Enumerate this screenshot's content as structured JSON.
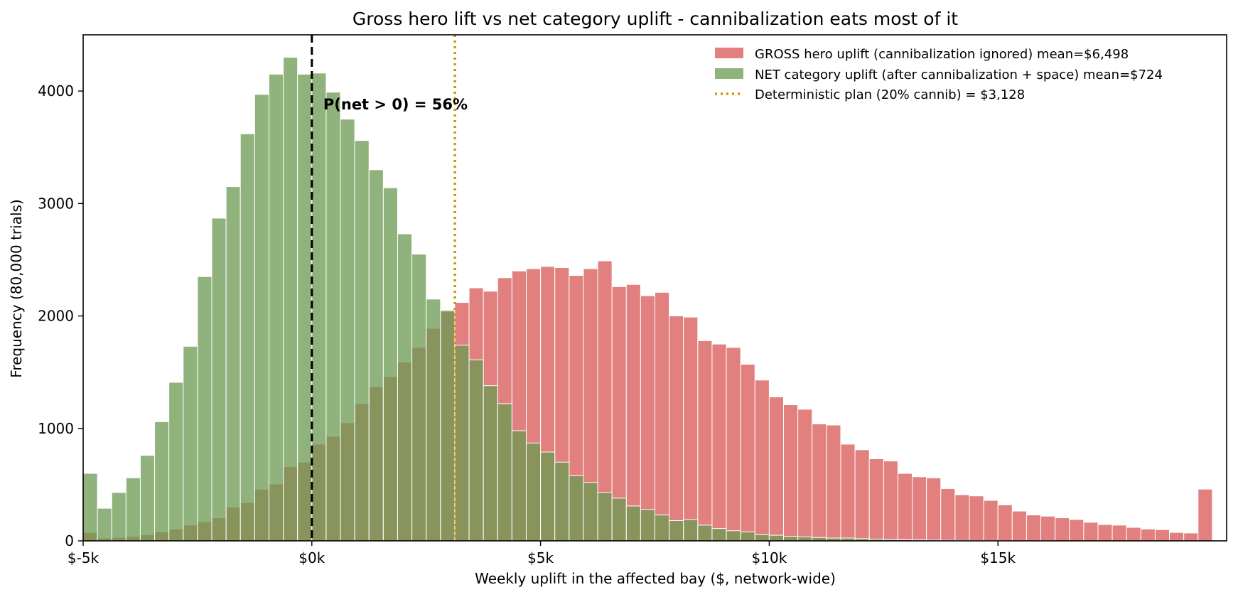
{
  "chart_data": {
    "type": "bar",
    "subtype": "overlapping-histogram",
    "title": "Gross hero lift vs net category uplift  -  cannibalization eats most of it",
    "xlabel": "Weekly uplift in the affected bay  ($, network-wide)",
    "ylabel": "Frequency  (80,000 trials)",
    "xlim": [
      -5000,
      20000
    ],
    "ylim": [
      0,
      4500
    ],
    "x_ticks": [
      {
        "value": -5000,
        "label": "$-5k"
      },
      {
        "value": 0,
        "label": "$0k"
      },
      {
        "value": 5000,
        "label": "$5k"
      },
      {
        "value": 10000,
        "label": "$10k"
      },
      {
        "value": 15000,
        "label": "$15k"
      }
    ],
    "y_ticks": [
      {
        "value": 0,
        "label": "0"
      },
      {
        "value": 1000,
        "label": "1000"
      },
      {
        "value": 2000,
        "label": "2000"
      },
      {
        "value": 3000,
        "label": "3000"
      },
      {
        "value": 4000,
        "label": "4000"
      }
    ],
    "bin_start": -5000,
    "bin_width": 312.5,
    "legend_position": "top-right",
    "series": [
      {
        "name": "GROSS hero uplift (cannibalization ignored)  mean=$6,498",
        "color": "#d9605e",
        "values": [
          75,
          25,
          30,
          40,
          55,
          80,
          105,
          140,
          170,
          205,
          300,
          340,
          460,
          505,
          660,
          700,
          860,
          930,
          1050,
          1220,
          1370,
          1460,
          1590,
          1720,
          1890,
          2040,
          2120,
          2250,
          2220,
          2340,
          2400,
          2420,
          2440,
          2430,
          2360,
          2420,
          2490,
          2260,
          2280,
          2180,
          2210,
          2000,
          1990,
          1780,
          1750,
          1720,
          1570,
          1430,
          1280,
          1210,
          1170,
          1040,
          1030,
          860,
          810,
          730,
          710,
          600,
          570,
          560,
          465,
          410,
          400,
          360,
          320,
          265,
          230,
          220,
          205,
          190,
          165,
          145,
          140,
          120,
          105,
          100,
          75,
          70,
          460
        ]
      },
      {
        "name": "NET category uplift (after cannibalization + space)  mean=$724",
        "color": "#6d9a53",
        "values": [
          600,
          290,
          430,
          560,
          760,
          1060,
          1410,
          1730,
          2350,
          2870,
          3150,
          3620,
          3970,
          4150,
          4300,
          4150,
          4160,
          3990,
          3750,
          3560,
          3300,
          3140,
          2730,
          2550,
          2150,
          2050,
          1740,
          1610,
          1380,
          1220,
          980,
          870,
          790,
          700,
          580,
          520,
          430,
          380,
          310,
          280,
          230,
          180,
          190,
          140,
          110,
          90,
          80,
          55,
          50,
          40,
          35,
          30,
          25,
          25,
          20,
          15,
          12,
          10,
          8,
          6,
          5,
          4,
          3,
          2,
          2,
          1,
          1,
          1,
          0,
          0,
          0,
          0,
          0,
          0,
          0,
          0,
          0,
          0,
          0
        ]
      }
    ],
    "reference_lines": [
      {
        "x": 0,
        "style": "dashed",
        "color": "#000000",
        "name": ""
      },
      {
        "x": 3128,
        "style": "dotted",
        "color": "#d4900a",
        "name": "Deterministic plan (20% cannib) = $3,128"
      }
    ],
    "annotations": [
      {
        "text": "P(net > 0) = 56%",
        "x": 250,
        "y": 3880
      }
    ]
  }
}
